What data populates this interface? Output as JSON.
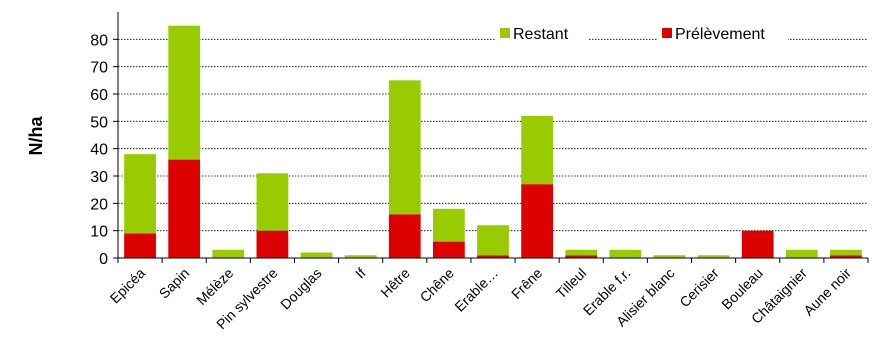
{
  "chart_data": {
    "type": "bar",
    "stacked": true,
    "title": "",
    "xlabel": "",
    "ylabel": "N/ha",
    "ylim": [
      0,
      90
    ],
    "yticks": [
      0,
      10,
      20,
      30,
      40,
      50,
      60,
      70,
      80
    ],
    "grid": true,
    "legend_position": "top-right",
    "categories": [
      "Epicéa",
      "Sapin",
      "Mélèze",
      "Pin sylvestre",
      "Douglas",
      "If",
      "Hêtre",
      "Chêne",
      "Erable…",
      "Frêne",
      "Tilleul",
      "Erable f.r.",
      "Alisier blanc",
      "Cerisier",
      "Bouleau",
      "Châtaignier",
      "Aune noir"
    ],
    "series": [
      {
        "name": "Prélèvement",
        "color": "#dd0000",
        "values": [
          9,
          36,
          0,
          10,
          0,
          0,
          16,
          6,
          1,
          27,
          1,
          0,
          0,
          0,
          10,
          0,
          1
        ]
      },
      {
        "name": "Restant",
        "color": "#99cc00",
        "values": [
          29,
          49,
          3,
          21,
          2,
          1,
          49,
          12,
          11,
          25,
          2,
          3,
          1,
          1,
          0,
          3,
          2
        ]
      }
    ]
  }
}
